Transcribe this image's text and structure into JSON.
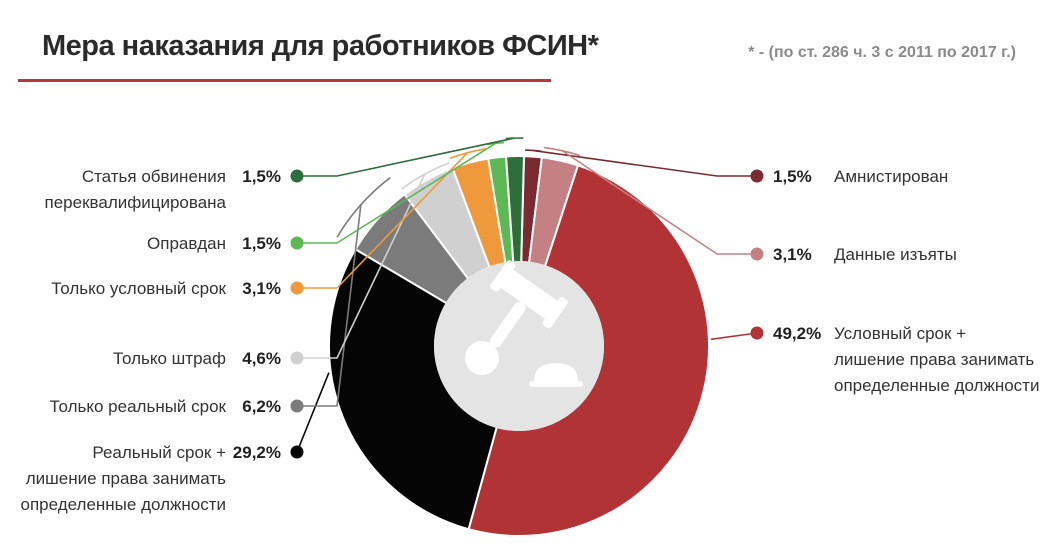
{
  "title": "Мера наказания для работников ФСИН*",
  "footnote": "* - (по ст. 286 ч. 3 с 2011 по 2017 г.)",
  "chart_data": {
    "type": "pie",
    "title": "Мера наказания для работников ФСИН*",
    "slices": [
      {
        "label": [
          "Амнистирован"
        ],
        "value": 1.5,
        "display": "1,5%",
        "color": "#7a2a30",
        "side": "right"
      },
      {
        "label": [
          "Данные изъяты"
        ],
        "value": 3.1,
        "display": "3,1%",
        "color": "#c48083",
        "side": "right"
      },
      {
        "label": [
          "Условный срок +",
          "лишение права занимать",
          "определенные должности"
        ],
        "value": 49.2,
        "display": "49,2%",
        "color": "#b23336",
        "side": "right"
      },
      {
        "label": [
          "Реальный срок +",
          "лишение права занимать",
          "определенные должности"
        ],
        "value": 29.2,
        "display": "29,2%",
        "color": "#050505",
        "side": "left"
      },
      {
        "label": [
          "Только реальный срок"
        ],
        "value": 6.2,
        "display": "6,2%",
        "color": "#7b7b7b",
        "side": "left"
      },
      {
        "label": [
          "Только штраф"
        ],
        "value": 4.6,
        "display": "4,6%",
        "color": "#d0d0d0",
        "side": "left"
      },
      {
        "label": [
          "Только условный срок"
        ],
        "value": 3.1,
        "display": "3,1%",
        "color": "#f0983c",
        "side": "left"
      },
      {
        "label": [
          "Оправдан"
        ],
        "value": 1.5,
        "display": "1,5%",
        "color": "#5db855",
        "side": "left"
      },
      {
        "label": [
          "Статья обвинения",
          "переквалифицирована"
        ],
        "value": 1.5,
        "display": "1,5%",
        "color": "#2d6e3a",
        "side": "left"
      }
    ]
  }
}
